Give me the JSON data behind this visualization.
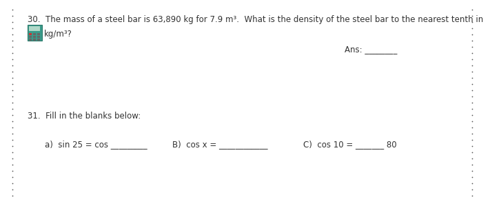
{
  "background_color": "#ffffff",
  "dot_color": "#555555",
  "line30_text": "30.  The mass of a steel bar is 63,890 kg for 7.9 m³.  What is the density of the steel bar to the nearest tenth in",
  "line30b_text": "kg/m³?",
  "ans_label": "Ans: ________",
  "line31_text": "31.  Fill in the blanks below:",
  "part_a": "a)  sin 25 = cos _________",
  "part_b": "B)  cos x = ____________",
  "part_c": "C)  cos 10 = _______ 80",
  "font_size_main": 8.5,
  "text_color": "#333333",
  "calc_face": "#3a9a8a",
  "calc_edge": "#2a7a6a",
  "calc_screen": "#b0d8c8",
  "calc_btn_red": "#cc3333",
  "calc_btn_dark": "#444444"
}
